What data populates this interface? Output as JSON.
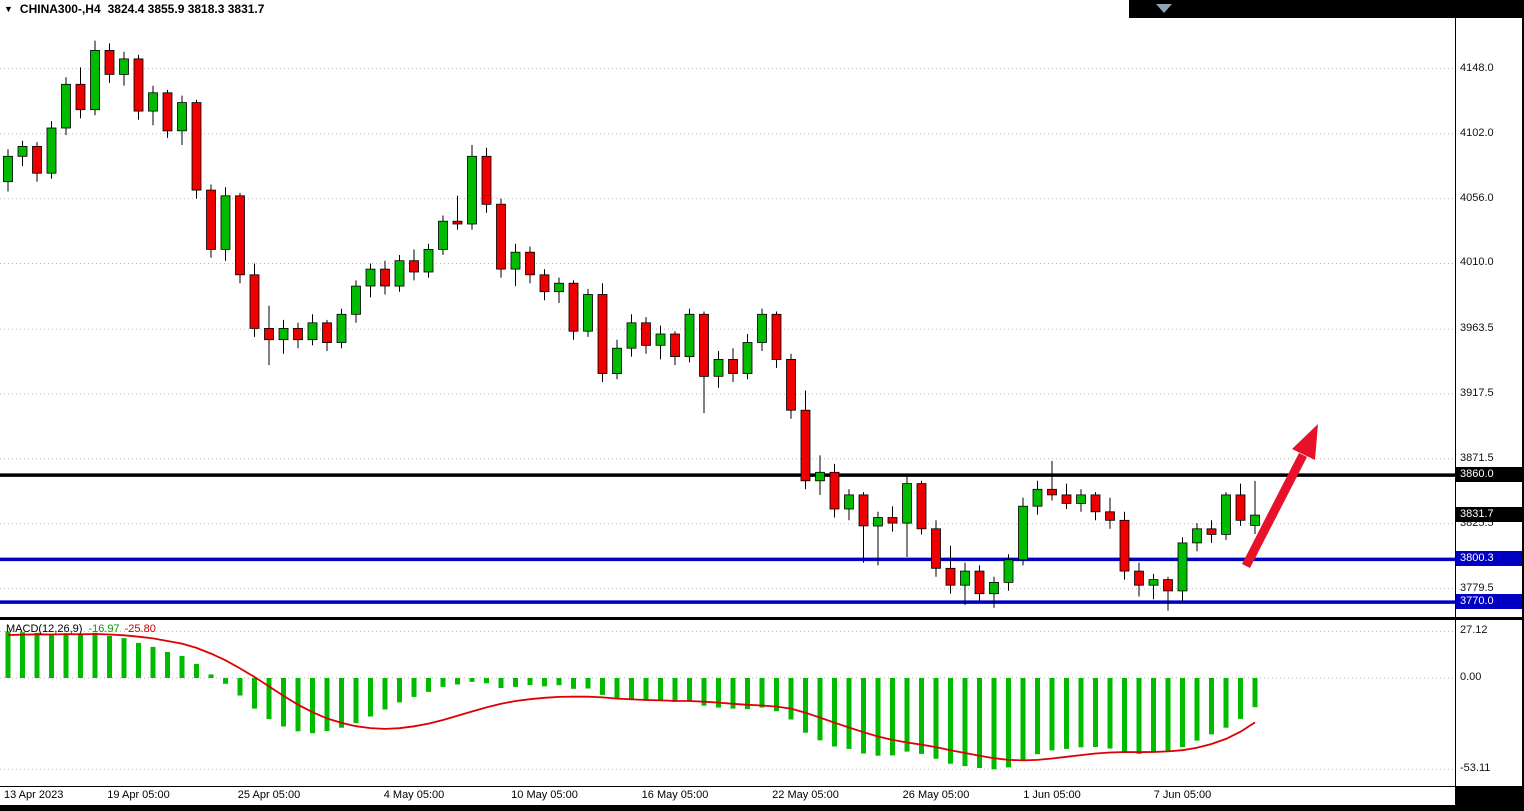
{
  "window": {
    "title_symbol": "CHINA300-,H4",
    "title_ohlc": "3824.4 3855.9 3818.3 3831.7"
  },
  "price_axis": {
    "badges": [
      {
        "price": 3860.0,
        "label": "3860.0",
        "bg": "#000000",
        "name": "resistance-price-label"
      },
      {
        "price": 3831.7,
        "label": "3831.7",
        "bg": "#000000",
        "name": "current-price-label"
      },
      {
        "price": 3800.3,
        "label": "3800.3",
        "bg": "#0000c3",
        "name": "support1-price-label"
      },
      {
        "price": 3770.0,
        "label": "3770.0",
        "bg": "#0000c3",
        "name": "support2-price-label"
      }
    ]
  },
  "macd_panel": {
    "label": "MACD(12,26,9)",
    "main_value": "-16.97",
    "signal_value": "-25.80",
    "ticks": [
      {
        "value": 27.12,
        "label": "27.12"
      },
      {
        "value": 0,
        "label": "0.00"
      },
      {
        "value": -53.11,
        "label": "-53.11"
      }
    ]
  },
  "colors": {
    "bull": "#00bb00",
    "bear": "#ee0000",
    "wick": "#000000",
    "histogram": "#00bb00",
    "signal": "#dd0000",
    "support": "#0000c3",
    "resistance": "#000000",
    "arrow": "#e8112a",
    "grid": "#b5b5b5"
  },
  "chart_data": [
    {
      "type": "candlestick",
      "symbol": "CHINA300-",
      "timeframe": "H4",
      "last_candle_ohlc": {
        "open": 3824.4,
        "high": 3855.9,
        "low": 3818.3,
        "close": 3831.7
      },
      "y_ticks": [
        {
          "price": 4148.0,
          "label": "4148.0"
        },
        {
          "price": 4102.0,
          "label": "4102.0"
        },
        {
          "price": 4056.0,
          "label": "4056.0"
        },
        {
          "price": 4010.0,
          "label": "4010.0"
        },
        {
          "price": 3963.5,
          "label": "3963.5"
        },
        {
          "price": 3917.5,
          "label": "3917.5"
        },
        {
          "price": 3871.5,
          "label": "3871.5"
        },
        {
          "price": 3825.5,
          "label": "3825.5"
        },
        {
          "price": 3779.5,
          "label": "3779.5"
        }
      ],
      "x_ticks": [
        {
          "index": 0,
          "label": "13 Apr 2023"
        },
        {
          "index": 9,
          "label": "19 Apr 05:00"
        },
        {
          "index": 18,
          "label": "25 Apr 05:00"
        },
        {
          "index": 28,
          "label": "4 May 05:00"
        },
        {
          "index": 37,
          "label": "10 May 05:00"
        },
        {
          "index": 46,
          "label": "16 May 05:00"
        },
        {
          "index": 55,
          "label": "22 May 05:00"
        },
        {
          "index": 64,
          "label": "26 May 05:00"
        },
        {
          "index": 72,
          "label": "1 Jun 05:00"
        },
        {
          "index": 81,
          "label": "7 Jun 05:00"
        }
      ],
      "hlines": [
        {
          "price": 3860.0,
          "color": "#000000",
          "name": "resistance-line"
        },
        {
          "price": 3800.3,
          "color": "#0000c3",
          "name": "support-line-1"
        },
        {
          "price": 3770.0,
          "color": "#0000c3",
          "name": "support-line-2"
        }
      ],
      "candles": [
        [
          4068,
          4091,
          4061,
          4086
        ],
        [
          4086,
          4097,
          4079,
          4093
        ],
        [
          4093,
          4096,
          4068,
          4074
        ],
        [
          4074,
          4111,
          4070,
          4106
        ],
        [
          4106,
          4142,
          4101,
          4137
        ],
        [
          4137,
          4149,
          4113,
          4119
        ],
        [
          4119,
          4168,
          4115,
          4161
        ],
        [
          4161,
          4166,
          4138,
          4144
        ],
        [
          4144,
          4160,
          4136,
          4155
        ],
        [
          4155,
          4158,
          4112,
          4118
        ],
        [
          4118,
          4136,
          4108,
          4131
        ],
        [
          4131,
          4133,
          4099,
          4104
        ],
        [
          4104,
          4129,
          4094,
          4124
        ],
        [
          4124,
          4126,
          4056,
          4062
        ],
        [
          4062,
          4066,
          4014,
          4020
        ],
        [
          4020,
          4064,
          4012,
          4058
        ],
        [
          4058,
          4060,
          3996,
          4002
        ],
        [
          4002,
          4010,
          3958,
          3964
        ],
        [
          3964,
          3980,
          3938,
          3956
        ],
        [
          3956,
          3970,
          3946,
          3964
        ],
        [
          3964,
          3968,
          3950,
          3956
        ],
        [
          3956,
          3974,
          3952,
          3968
        ],
        [
          3968,
          3970,
          3948,
          3954
        ],
        [
          3954,
          3978,
          3950,
          3974
        ],
        [
          3974,
          3998,
          3968,
          3994
        ],
        [
          3994,
          4010,
          3986,
          4006
        ],
        [
          4006,
          4012,
          3988,
          3994
        ],
        [
          3994,
          4016,
          3990,
          4012
        ],
        [
          4012,
          4020,
          3998,
          4004
        ],
        [
          4004,
          4024,
          4000,
          4020
        ],
        [
          4020,
          4044,
          4016,
          4040
        ],
        [
          4040,
          4058,
          4034,
          4038
        ],
        [
          4038,
          4094,
          4034,
          4086
        ],
        [
          4086,
          4092,
          4046,
          4052
        ],
        [
          4052,
          4056,
          4000,
          4006
        ],
        [
          4006,
          4024,
          3994,
          4018
        ],
        [
          4018,
          4022,
          3996,
          4002
        ],
        [
          4002,
          4006,
          3984,
          3990
        ],
        [
          3990,
          4000,
          3982,
          3996
        ],
        [
          3996,
          3998,
          3956,
          3962
        ],
        [
          3962,
          3992,
          3958,
          3988
        ],
        [
          3988,
          3996,
          3926,
          3932
        ],
        [
          3932,
          3956,
          3928,
          3950
        ],
        [
          3950,
          3974,
          3944,
          3968
        ],
        [
          3968,
          3972,
          3946,
          3952
        ],
        [
          3952,
          3966,
          3942,
          3960
        ],
        [
          3960,
          3962,
          3938,
          3944
        ],
        [
          3944,
          3978,
          3940,
          3974
        ],
        [
          3974,
          3976,
          3904,
          3930
        ],
        [
          3930,
          3948,
          3922,
          3942
        ],
        [
          3942,
          3950,
          3926,
          3932
        ],
        [
          3932,
          3960,
          3928,
          3954
        ],
        [
          3954,
          3978,
          3948,
          3974
        ],
        [
          3974,
          3976,
          3936,
          3942
        ],
        [
          3942,
          3946,
          3900,
          3906
        ],
        [
          3906,
          3920,
          3850,
          3856
        ],
        [
          3856,
          3874,
          3846,
          3862
        ],
        [
          3862,
          3868,
          3830,
          3836
        ],
        [
          3836,
          3850,
          3828,
          3846
        ],
        [
          3846,
          3848,
          3798,
          3824
        ],
        [
          3824,
          3834,
          3796,
          3830
        ],
        [
          3830,
          3838,
          3820,
          3826
        ],
        [
          3826,
          3860,
          3802,
          3854
        ],
        [
          3854,
          3856,
          3818,
          3822
        ],
        [
          3822,
          3828,
          3788,
          3794
        ],
        [
          3794,
          3810,
          3776,
          3782
        ],
        [
          3782,
          3798,
          3768,
          3792
        ],
        [
          3792,
          3796,
          3770,
          3776
        ],
        [
          3776,
          3788,
          3766,
          3784
        ],
        [
          3784,
          3804,
          3778,
          3800
        ],
        [
          3800,
          3844,
          3796,
          3838
        ],
        [
          3838,
          3856,
          3832,
          3850
        ],
        [
          3850,
          3870,
          3842,
          3846
        ],
        [
          3846,
          3854,
          3836,
          3840
        ],
        [
          3840,
          3850,
          3834,
          3846
        ],
        [
          3846,
          3848,
          3828,
          3834
        ],
        [
          3834,
          3844,
          3822,
          3828
        ],
        [
          3828,
          3834,
          3786,
          3792
        ],
        [
          3792,
          3798,
          3774,
          3782
        ],
        [
          3782,
          3790,
          3772,
          3786
        ],
        [
          3786,
          3788,
          3764,
          3778
        ],
        [
          3778,
          3816,
          3770,
          3812
        ],
        [
          3812,
          3826,
          3806,
          3822
        ],
        [
          3822,
          3828,
          3812,
          3818
        ],
        [
          3818,
          3848,
          3814,
          3846
        ],
        [
          3846,
          3854,
          3824,
          3828
        ],
        [
          3824.4,
          3855.9,
          3818.3,
          3831.7
        ]
      ]
    },
    {
      "type": "macd",
      "params": "12,26,9",
      "last": {
        "macd": -16.97,
        "signal": -25.8
      },
      "ylim": [
        -53.11,
        27.12
      ],
      "histogram": [
        27.1,
        26.6,
        26.2,
        25.7,
        26.0,
        25.2,
        26.3,
        24.5,
        23.2,
        20.4,
        18.1,
        15.2,
        12.8,
        8.2,
        2.1,
        -3.4,
        -10.2,
        -17.8,
        -23.9,
        -28.2,
        -31.0,
        -32.1,
        -30.8,
        -28.9,
        -26.2,
        -22.4,
        -18.3,
        -14.2,
        -11.0,
        -8.1,
        -5.2,
        -3.8,
        -2.2,
        -3.1,
        -5.8,
        -5.2,
        -4.1,
        -4.8,
        -4.2,
        -6.3,
        -6.1,
        -9.8,
        -11.9,
        -12.2,
        -13.1,
        -12.8,
        -13.9,
        -13.2,
        -16.1,
        -17.2,
        -17.8,
        -18.1,
        -17.2,
        -19.3,
        -24.1,
        -31.8,
        -36.2,
        -39.8,
        -41.2,
        -43.9,
        -45.2,
        -45.0,
        -42.8,
        -44.1,
        -46.9,
        -49.8,
        -51.2,
        -52.3,
        -53.1,
        -52.0,
        -48.2,
        -44.3,
        -42.1,
        -41.2,
        -40.3,
        -40.1,
        -41.0,
        -43.2,
        -44.1,
        -43.3,
        -42.8,
        -40.2,
        -36.4,
        -32.8,
        -28.9,
        -23.8,
        -16.97
      ],
      "signal": [
        25.0,
        25.2,
        25.4,
        25.3,
        25.5,
        25.4,
        25.6,
        25.3,
        24.8,
        24.0,
        23.0,
        21.5,
        20.0,
        17.5,
        14.2,
        10.3,
        5.6,
        0.6,
        -4.9,
        -10.4,
        -15.5,
        -19.9,
        -23.5,
        -26.1,
        -28.0,
        -29.1,
        -29.6,
        -29.2,
        -28.1,
        -26.5,
        -24.4,
        -22.0,
        -19.5,
        -17.1,
        -15.0,
        -13.4,
        -12.3,
        -11.5,
        -11.0,
        -10.8,
        -10.9,
        -11.3,
        -12.0,
        -12.4,
        -12.8,
        -13.0,
        -13.3,
        -13.4,
        -13.8,
        -14.3,
        -15.0,
        -15.6,
        -16.0,
        -16.6,
        -17.8,
        -20.2,
        -23.0,
        -26.0,
        -28.8,
        -31.5,
        -34.0,
        -36.0,
        -37.5,
        -38.8,
        -40.2,
        -42.0,
        -43.6,
        -45.2,
        -46.6,
        -47.6,
        -47.9,
        -47.6,
        -46.8,
        -45.8,
        -44.8,
        -43.9,
        -43.3,
        -43.0,
        -43.1,
        -43.0,
        -42.7,
        -42.0,
        -40.6,
        -38.4,
        -35.4,
        -31.2,
        -25.8
      ]
    }
  ]
}
